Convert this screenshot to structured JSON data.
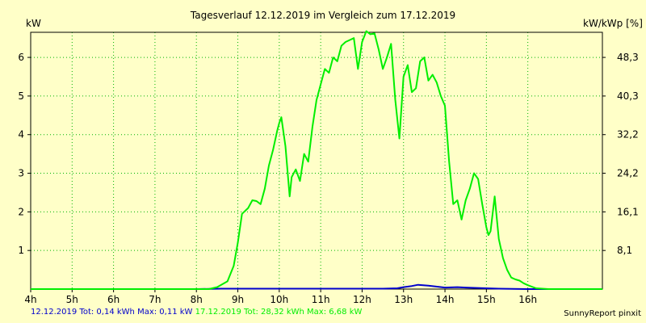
{
  "chart_data": {
    "type": "line",
    "title": "Tagesverlauf 12.12.2019 im Vergleich zum 17.12.2019",
    "ylabel_left": "kW",
    "ylabel_right": "kW/kWp [%]",
    "x_ticks": [
      "4h",
      "5h",
      "6h",
      "7h",
      "8h",
      "9h",
      "10h",
      "11h",
      "12h",
      "13h",
      "14h",
      "15h",
      "16h"
    ],
    "y_ticks_left": [
      "1",
      "2",
      "3",
      "4",
      "5",
      "6"
    ],
    "y_ticks_right": [
      "8,1",
      "16,1",
      "24,2",
      "32,2",
      "40,3",
      "48,3"
    ],
    "xlim": [
      4,
      17.8
    ],
    "ylim": [
      0,
      6.65
    ],
    "grid": true,
    "colors": {
      "background": "#ffffc8",
      "grid": "#00b400",
      "axis": "#000000",
      "series_a": "#0000cc",
      "series_b": "#00ee00"
    },
    "series": [
      {
        "name": "12.12.2019",
        "color": "#0000cc",
        "x": [
          4.0,
          8.0,
          8.6,
          9.0,
          10.0,
          11.0,
          12.0,
          12.5,
          12.85,
          13.0,
          13.2,
          13.35,
          13.6,
          14.0,
          14.3,
          14.5,
          15.0,
          15.3,
          16.0,
          16.5,
          17.8
        ],
        "y": [
          0.0,
          0.0,
          0.01,
          0.01,
          0.01,
          0.01,
          0.01,
          0.01,
          0.02,
          0.05,
          0.08,
          0.11,
          0.09,
          0.04,
          0.05,
          0.04,
          0.02,
          0.01,
          0.0,
          0.0,
          0.0
        ]
      },
      {
        "name": "17.12.2019",
        "color": "#00ee00",
        "x": [
          4.0,
          7.4,
          8.3,
          8.5,
          8.75,
          8.9,
          9.0,
          9.1,
          9.2,
          9.25,
          9.35,
          9.45,
          9.55,
          9.65,
          9.75,
          9.85,
          9.95,
          10.0,
          10.05,
          10.15,
          10.25,
          10.3,
          10.4,
          10.5,
          10.6,
          10.7,
          10.8,
          10.9,
          11.0,
          11.1,
          11.2,
          11.3,
          11.4,
          11.5,
          11.6,
          11.7,
          11.8,
          11.9,
          12.0,
          12.1,
          12.2,
          12.3,
          12.4,
          12.5,
          12.6,
          12.7,
          12.8,
          12.9,
          13.0,
          13.1,
          13.2,
          13.3,
          13.4,
          13.5,
          13.6,
          13.7,
          13.8,
          13.9,
          14.0,
          14.1,
          14.2,
          14.3,
          14.4,
          14.5,
          14.6,
          14.7,
          14.8,
          14.9,
          15.0,
          15.05,
          15.1,
          15.2,
          15.3,
          15.4,
          15.5,
          15.6,
          15.7,
          15.8,
          15.9,
          16.0,
          16.2,
          16.5,
          17.8
        ],
        "y": [
          0.0,
          0.0,
          0.0,
          0.05,
          0.2,
          0.6,
          1.2,
          1.95,
          2.05,
          2.1,
          2.3,
          2.28,
          2.2,
          2.6,
          3.2,
          3.6,
          4.1,
          4.3,
          4.45,
          3.7,
          2.4,
          2.9,
          3.1,
          2.8,
          3.5,
          3.3,
          4.2,
          4.9,
          5.3,
          5.7,
          5.6,
          6.0,
          5.9,
          6.3,
          6.4,
          6.45,
          6.5,
          5.7,
          6.4,
          6.68,
          6.6,
          6.62,
          6.2,
          5.7,
          6.0,
          6.35,
          4.9,
          3.9,
          5.5,
          5.8,
          5.1,
          5.2,
          5.9,
          6.0,
          5.4,
          5.55,
          5.35,
          5.0,
          4.75,
          3.3,
          2.2,
          2.3,
          1.8,
          2.3,
          2.6,
          3.0,
          2.85,
          2.2,
          1.6,
          1.4,
          1.5,
          2.4,
          1.3,
          0.8,
          0.5,
          0.3,
          0.25,
          0.22,
          0.15,
          0.1,
          0.02,
          0.0,
          0.0
        ]
      }
    ]
  },
  "footer": {
    "part1": "12.12.2019 Tot: 0,14 kWh Max: 0,11 kW",
    "part2": "17.12.2019 Tot: 28,32 kWh Max: 6,68 kW"
  },
  "credit": "SunnyReport pinxit"
}
